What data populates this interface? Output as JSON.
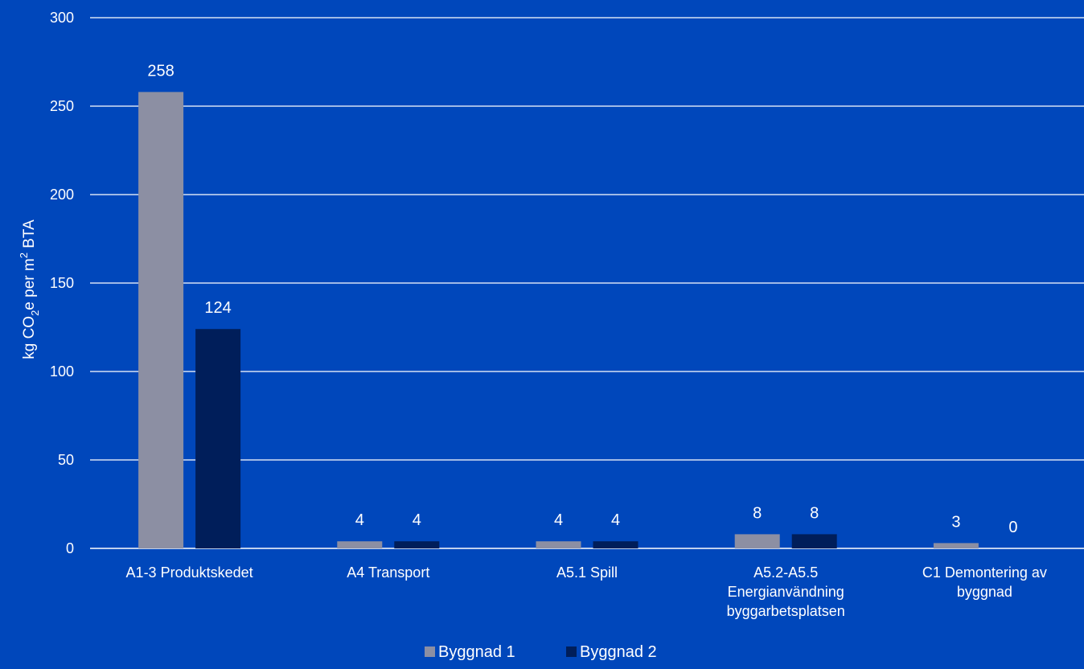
{
  "chart_data": {
    "type": "bar",
    "title": "",
    "ylabel": "kg CO2e per m2 BTA",
    "ylabel_parts": {
      "a": "kg CO",
      "sub": "2",
      "b": "e per m",
      "sup": "2",
      "c": " BTA"
    },
    "ylim": [
      0,
      300
    ],
    "yticks": [
      0,
      50,
      100,
      150,
      200,
      250,
      300
    ],
    "grid": true,
    "legend_position": "bottom",
    "categories": [
      [
        "A1-3 Produktskedet"
      ],
      [
        "A4 Transport"
      ],
      [
        "A5.1 Spill"
      ],
      [
        "A5.2-A5.5",
        "Energianvändning",
        "byggarbetsplatsen"
      ],
      [
        "C1 Demontering av",
        "byggnad"
      ]
    ],
    "series": [
      {
        "name": "Byggnad 1",
        "color": "#8c8fa3",
        "values": [
          258,
          4,
          4,
          8,
          3
        ]
      },
      {
        "name": "Byggnad 2",
        "color": "#001e5a",
        "values": [
          124,
          4,
          4,
          8,
          0
        ]
      }
    ]
  }
}
